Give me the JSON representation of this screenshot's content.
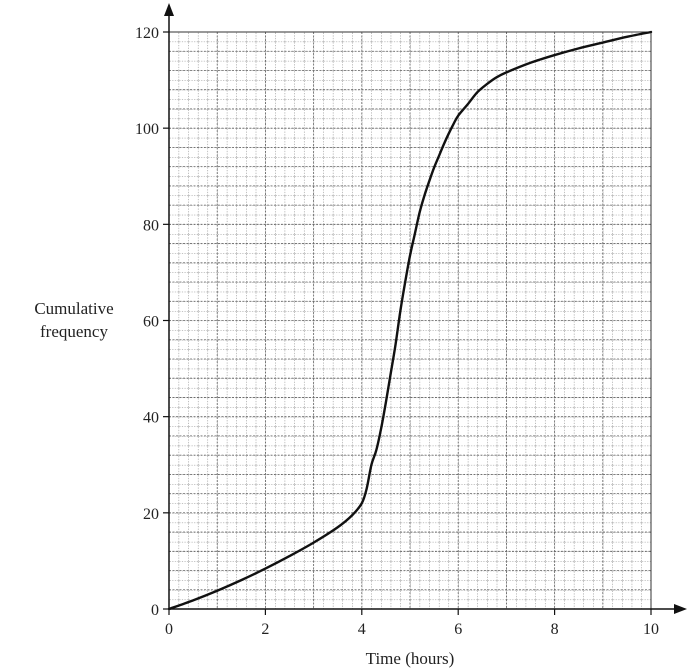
{
  "chart_data": {
    "type": "line",
    "title": "",
    "xlabel": "Time (hours)",
    "ylabel_lines": [
      "Cumulative",
      "frequency"
    ],
    "xlim": [
      0,
      10
    ],
    "ylim": [
      0,
      120
    ],
    "x_ticks": [
      0,
      2,
      4,
      6,
      8,
      10
    ],
    "y_ticks": [
      0,
      20,
      40,
      60,
      80,
      100,
      120
    ],
    "grid": true,
    "series": [
      {
        "x": [
          0,
          0.5,
          1,
          1.5,
          2,
          2.5,
          3,
          3.5,
          3.8,
          4.0,
          4.1,
          4.2,
          4.3,
          4.4,
          4.5,
          4.6,
          4.7,
          4.8,
          4.9,
          5.0,
          5.1,
          5.2,
          5.3,
          5.4,
          5.5,
          5.6,
          5.7,
          5.8,
          5.9,
          6.0,
          6.2,
          6.4,
          6.6,
          6.8,
          7.0,
          7.5,
          8.0,
          8.5,
          9.0,
          9.5,
          10
        ],
        "y": [
          0,
          1.8,
          3.8,
          6.0,
          8.4,
          11.0,
          13.8,
          17.0,
          19.5,
          22.0,
          25.0,
          30.0,
          33.0,
          37.5,
          43.0,
          49.0,
          55.0,
          62.0,
          68.0,
          73.5,
          78.0,
          82.5,
          86.0,
          89.0,
          91.8,
          94.2,
          96.6,
          98.8,
          100.8,
          102.6,
          105.0,
          107.5,
          109.2,
          110.6,
          111.6,
          113.6,
          115.2,
          116.6,
          117.8,
          119.0,
          120
        ]
      }
    ]
  }
}
